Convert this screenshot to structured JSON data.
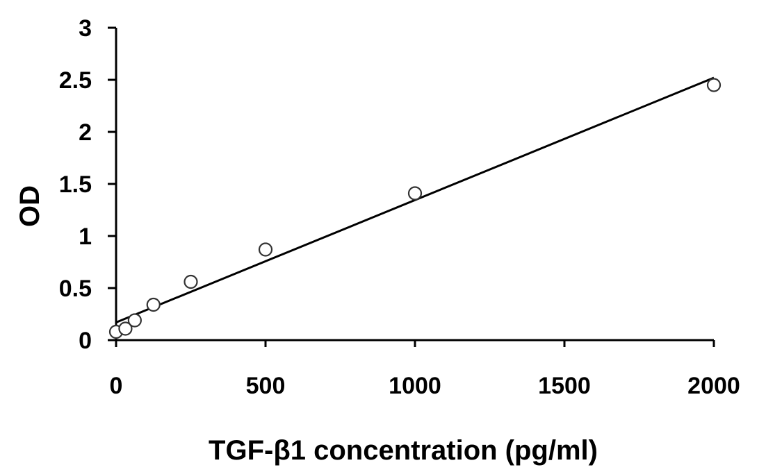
{
  "chart_data": {
    "type": "scatter",
    "xlabel": "TGF-β1 concentration (pg/ml)",
    "ylabel": "OD",
    "xlim": [
      0,
      2000
    ],
    "ylim": [
      0,
      3
    ],
    "xticks": [
      0,
      500,
      1000,
      1500,
      2000
    ],
    "yticks": [
      0,
      0.5,
      1,
      1.5,
      2,
      2.5,
      3
    ],
    "xtick_labels": [
      "0",
      "500",
      "1000",
      "1500",
      "2000"
    ],
    "ytick_labels": [
      "0",
      "0.5",
      "1",
      "1.5",
      "2",
      "2.5",
      "3"
    ],
    "grid": false,
    "points": [
      {
        "x": 0,
        "y": 0.08
      },
      {
        "x": 31.25,
        "y": 0.11
      },
      {
        "x": 62.5,
        "y": 0.19
      },
      {
        "x": 125,
        "y": 0.34
      },
      {
        "x": 250,
        "y": 0.56
      },
      {
        "x": 500,
        "y": 0.87
      },
      {
        "x": 1000,
        "y": 1.41
      },
      {
        "x": 2000,
        "y": 2.45
      }
    ],
    "trendline": {
      "type": "linear",
      "x": [
        0,
        2000
      ],
      "y": [
        0.17,
        2.52
      ]
    }
  }
}
